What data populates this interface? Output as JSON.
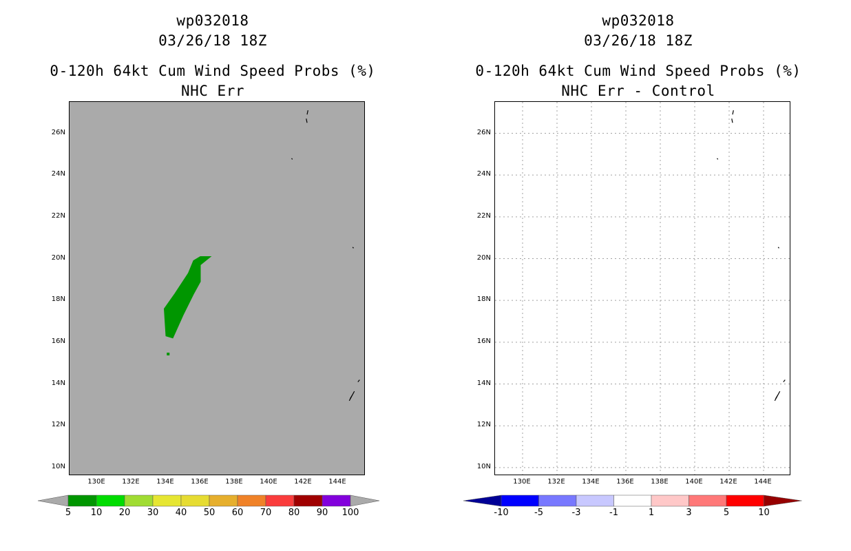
{
  "panels": [
    {
      "storm_id": "wp032018",
      "datetime": "03/26/18 18Z",
      "product": "0-120h 64kt Cum Wind Speed Probs (%)",
      "subtitle": "NHC Err",
      "colorbar_labels": [
        "5",
        "10",
        "20",
        "30",
        "40",
        "50",
        "60",
        "70",
        "80",
        "90",
        "100"
      ],
      "colorbar_colors": [
        "#009600",
        "#00dc00",
        "#a0dc32",
        "#e6e632",
        "#e6dc32",
        "#e6af2d",
        "#f08228",
        "#fa3c3c",
        "#a00000",
        "#8200dc"
      ],
      "background": "#aaaaaa"
    },
    {
      "storm_id": "wp032018",
      "datetime": "03/26/18 18Z",
      "product": "0-120h 64kt Cum Wind Speed Probs (%)",
      "subtitle": "NHC Err - Control",
      "colorbar_labels": [
        "-10",
        "-5",
        "-3",
        "-1",
        "1",
        "3",
        "5",
        "10"
      ],
      "colorbar_colors": [
        "#000096",
        "#0000ff",
        "#7878ff",
        "#c8c8ff",
        "#ffffff",
        "#ffc8c8",
        "#ff7878",
        "#ff0000",
        "#960000"
      ],
      "background": "#ffffff"
    }
  ],
  "chart_data": [
    {
      "type": "heatmap",
      "title": "wp032018 03/26/18 18Z 0-120h 64kt Cum Wind Speed Probs (%) NHC Err",
      "x_ticks": [
        "130E",
        "132E",
        "134E",
        "136E",
        "138E",
        "140E",
        "142E",
        "144E"
      ],
      "y_ticks": [
        "26N",
        "24N",
        "22N",
        "20N",
        "18N",
        "16N",
        "14N",
        "12N",
        "10N"
      ],
      "lon_range": [
        128.4,
        145.6
      ],
      "lat_range": [
        9.6,
        27.5
      ],
      "probability_region_5_10pct": [
        [
          134.0,
          16.3
        ],
        [
          133.9,
          17.6
        ],
        [
          134.5,
          18.3
        ],
        [
          135.3,
          19.3
        ],
        [
          135.6,
          19.9
        ],
        [
          136.0,
          20.1
        ],
        [
          136.6,
          20.1
        ],
        [
          136.0,
          19.7
        ],
        [
          136.0,
          18.9
        ],
        [
          135.6,
          18.3
        ],
        [
          135.0,
          17.3
        ],
        [
          134.4,
          16.2
        ]
      ],
      "grid": false
    },
    {
      "type": "heatmap",
      "title": "wp032018 03/26/18 18Z 0-120h 64kt Cum Wind Speed Probs (%) NHC Err - Control",
      "x_ticks": [
        "130E",
        "132E",
        "134E",
        "136E",
        "138E",
        "140E",
        "142E",
        "144E"
      ],
      "y_ticks": [
        "26N",
        "24N",
        "22N",
        "20N",
        "18N",
        "16N",
        "14N",
        "12N",
        "10N"
      ],
      "lon_range": [
        128.4,
        145.6
      ],
      "lat_range": [
        9.6,
        27.5
      ],
      "difference_values": "none",
      "grid": true
    }
  ]
}
